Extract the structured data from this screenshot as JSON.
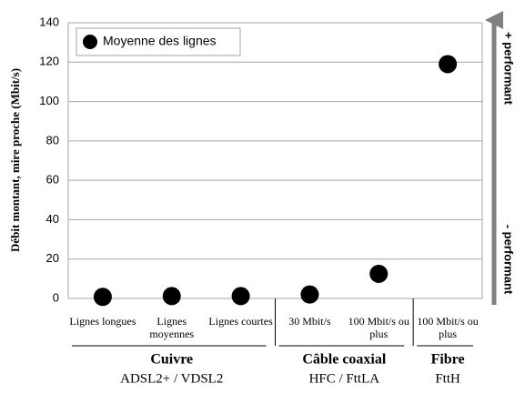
{
  "chart_data": {
    "type": "scatter",
    "y_label": "Débit montant, mire proche (Mbit/s)",
    "categories": [
      "Lignes longues",
      "Lignes moyennes",
      "Lignes courtes",
      "30 Mbit/s",
      "100 Mbit/s ou plus",
      "100 Mbit/s ou plus"
    ],
    "series": [
      {
        "name": "Moyenne des lignes",
        "color": "#000000",
        "values": [
          0.8,
          1.2,
          1.2,
          2,
          12.5,
          119
        ]
      }
    ],
    "ylim": [
      0,
      140
    ],
    "yticks": [
      0,
      20,
      40,
      60,
      80,
      100,
      120,
      140
    ],
    "grid": true,
    "legend": "upper left",
    "groups": [
      {
        "title": "Cuivre",
        "subtitle": "ADSL2+ / VDSL2"
      },
      {
        "title": "Câble coaxial",
        "subtitle": "HFC / FttLA"
      },
      {
        "title": "Fibre",
        "subtitle": "FttH"
      }
    ],
    "arrow_labels": {
      "top": "+ performant",
      "bottom": "- performant"
    }
  }
}
